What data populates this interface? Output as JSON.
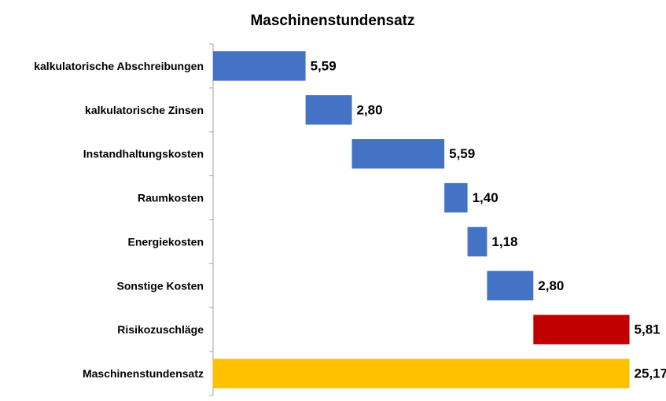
{
  "chart_data": {
    "type": "bar",
    "subtype": "waterfall",
    "orientation": "horizontal",
    "title": "Maschinenstundensatz",
    "xlabel": "",
    "ylabel": "",
    "grid": false,
    "legend": "none",
    "categories": [
      "kalkulatorische Abschreibungen",
      "kalkulatorische Zinsen",
      "Instandhaltungskosten",
      "Raumkosten",
      "Energiekosten",
      "Sonstige Kosten",
      "Risikozuschläge",
      "Maschinenstundensatz"
    ],
    "values": [
      5.59,
      2.8,
      5.59,
      1.4,
      1.18,
      2.8,
      5.81,
      25.17
    ],
    "value_labels": [
      "5,59",
      "2,80",
      "5,59",
      "1,40",
      "1,18",
      "2,80",
      "5,81",
      "25,17"
    ],
    "bar_kinds": [
      "increment",
      "increment",
      "increment",
      "increment",
      "increment",
      "increment",
      "increment",
      "total"
    ],
    "colors": [
      "#4472C4",
      "#4472C4",
      "#4472C4",
      "#4472C4",
      "#4472C4",
      "#4472C4",
      "#C00000",
      "#FFC000"
    ],
    "xlim": [
      0,
      26
    ]
  }
}
